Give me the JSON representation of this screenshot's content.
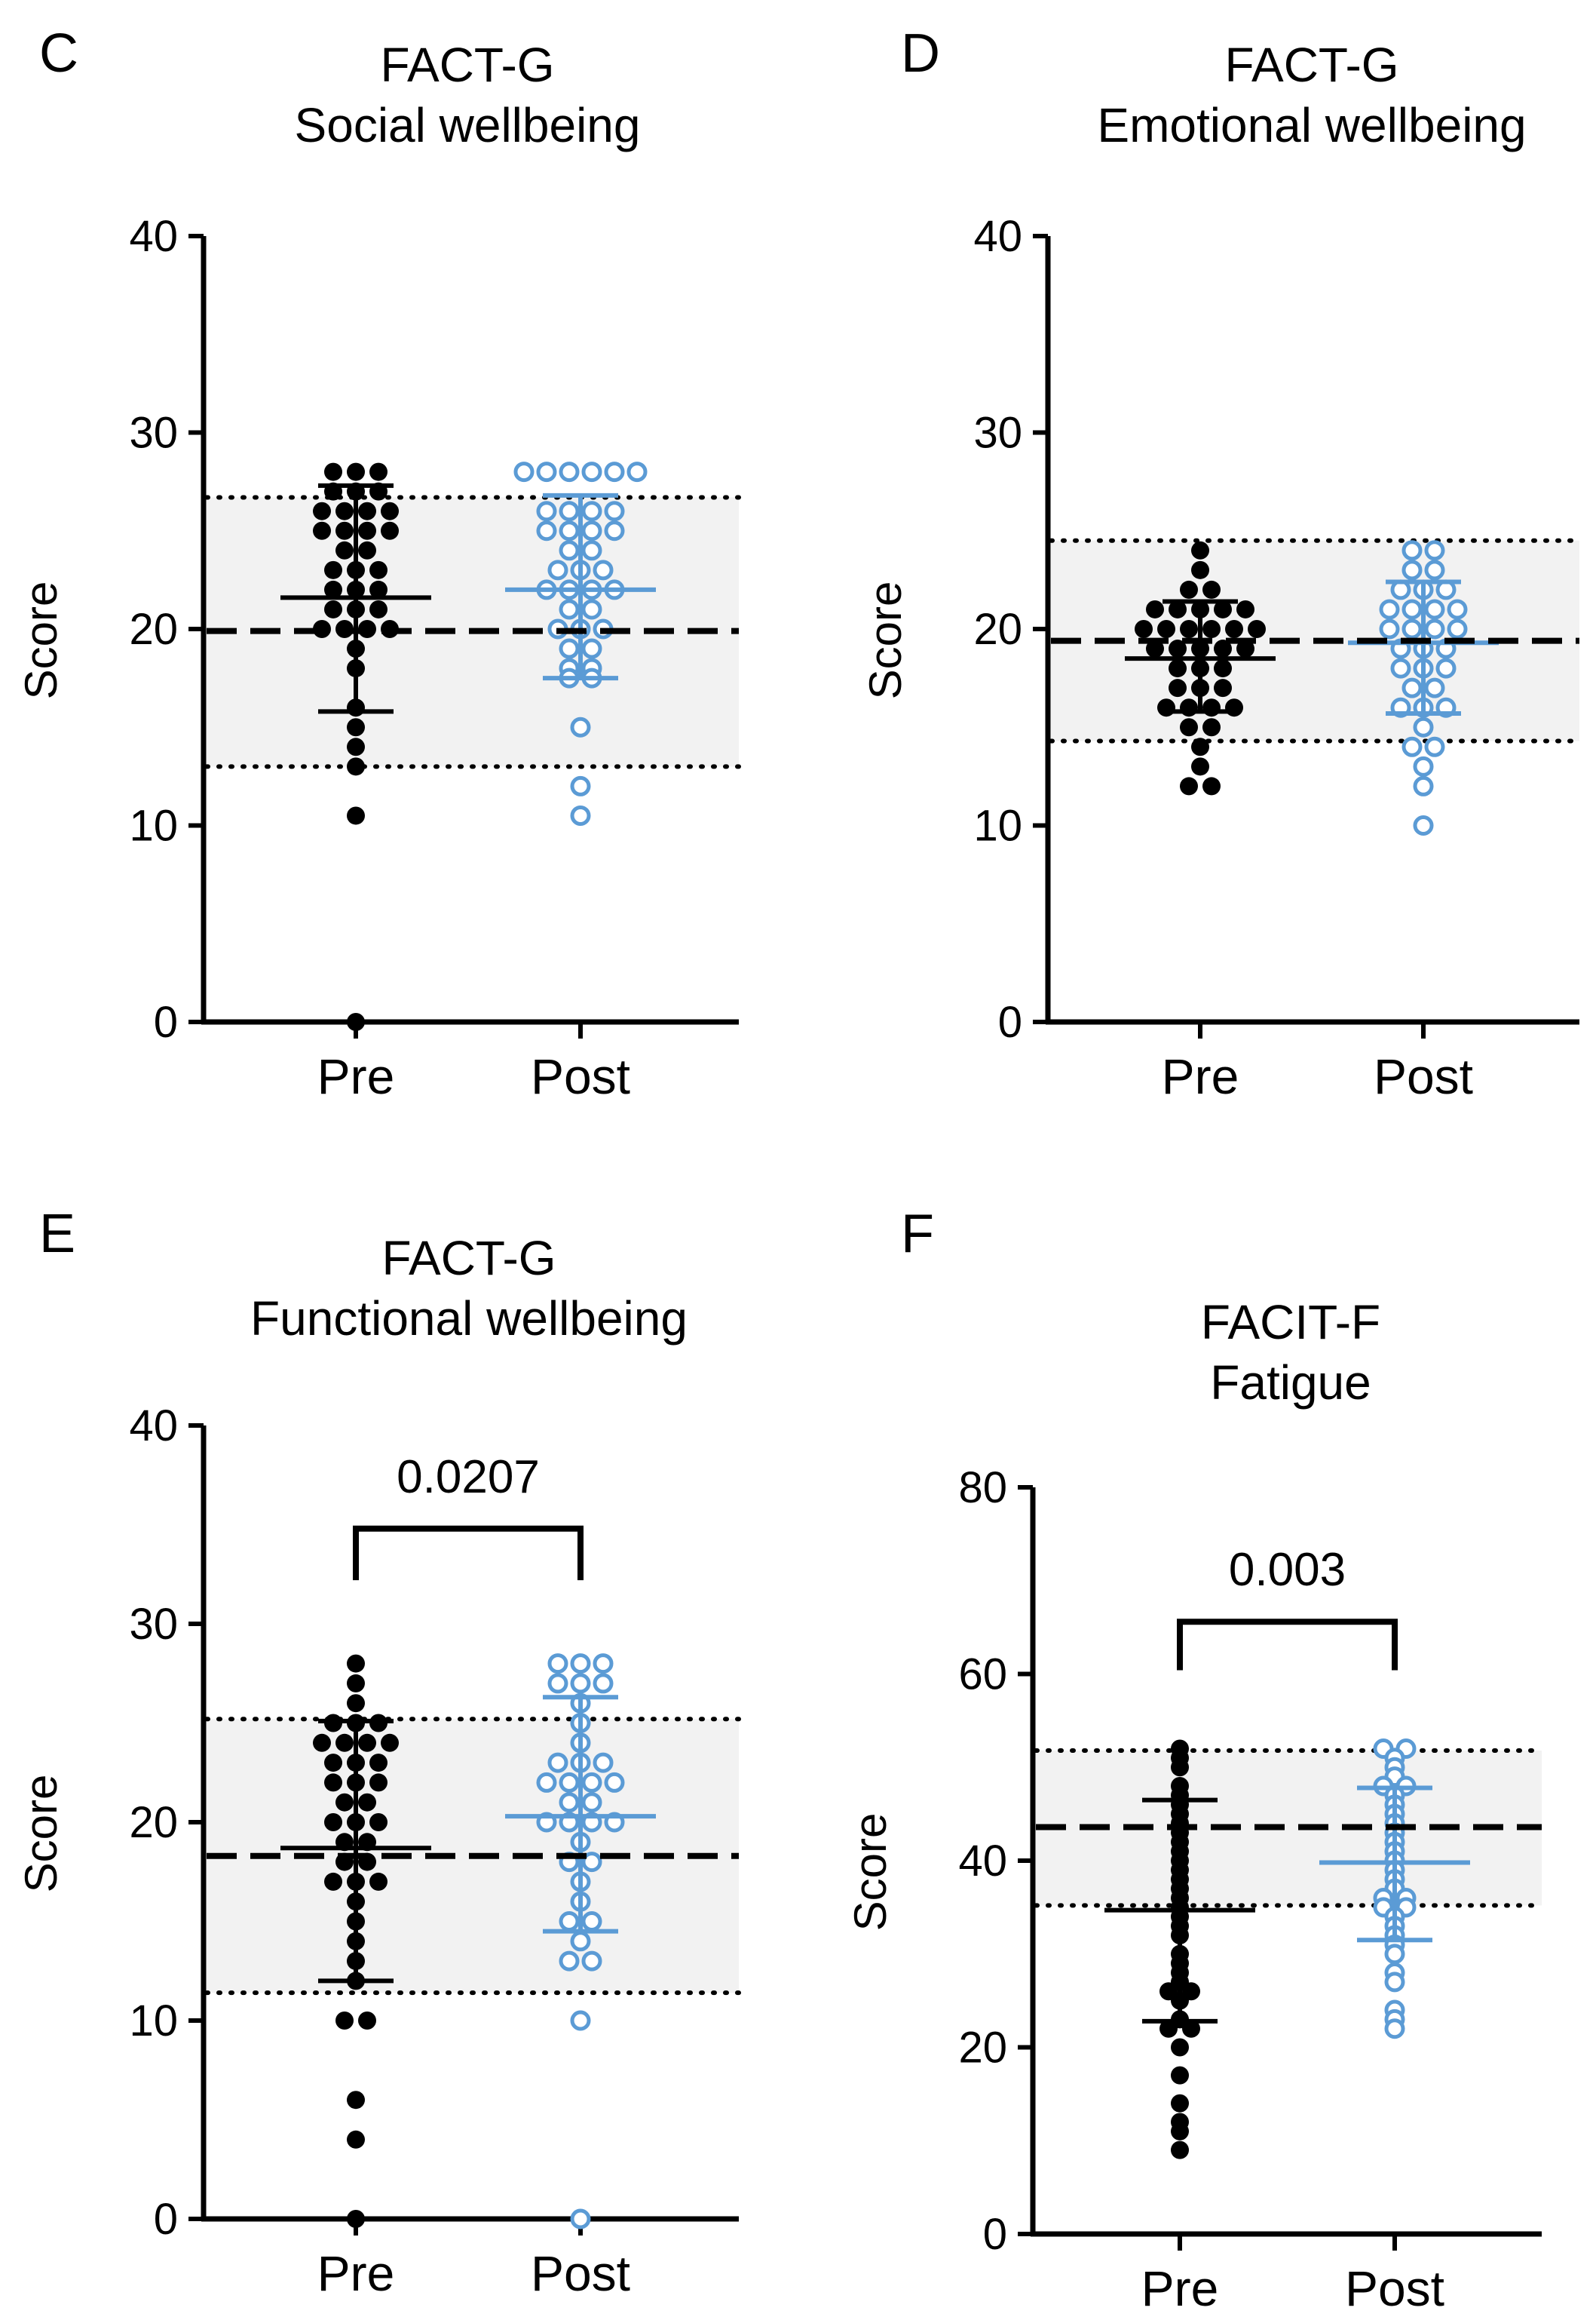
{
  "chart_data": [
    {
      "panel": "C",
      "type": "scatter",
      "title": [
        "FACT-G",
        "Social wellbeing"
      ],
      "ylabel": "Score",
      "ylim": [
        0,
        40
      ],
      "yticks": [
        0,
        10,
        20,
        30,
        40
      ],
      "categories": [
        "Pre",
        "Post"
      ],
      "reference": {
        "mean": 19.9,
        "lower": 13.0,
        "upper": 26.7
      },
      "pvalue": null,
      "series": [
        {
          "name": "Pre",
          "mean": 21.6,
          "sd_low": 15.8,
          "sd_high": 27.3,
          "values": [
            28,
            28,
            28,
            27,
            27,
            27,
            26,
            26,
            26,
            26,
            25,
            25,
            25,
            25,
            24,
            24,
            23,
            23,
            23,
            22,
            22,
            22,
            21,
            21,
            21,
            20,
            20,
            20,
            20,
            19,
            18,
            16,
            15,
            14,
            13,
            10.5,
            0
          ]
        },
        {
          "name": "Post",
          "mean": 22.0,
          "sd_low": 17.5,
          "sd_high": 26.8,
          "values": [
            28,
            28,
            28,
            28,
            28,
            28,
            26,
            26,
            26,
            26,
            25,
            25,
            25,
            25,
            24,
            24,
            23,
            23,
            23,
            22,
            22,
            22,
            22,
            21,
            21,
            20,
            20,
            20,
            19,
            19,
            18,
            18,
            17.5,
            17.5,
            15,
            12,
            10.5
          ]
        }
      ]
    },
    {
      "panel": "D",
      "type": "scatter",
      "title": [
        "FACT-G",
        "Emotional wellbeing"
      ],
      "ylabel": "Score",
      "ylim": [
        0,
        40
      ],
      "yticks": [
        0,
        10,
        20,
        30,
        40
      ],
      "categories": [
        "Pre",
        "Post"
      ],
      "reference": {
        "mean": 19.4,
        "lower": 14.3,
        "upper": 24.5
      },
      "pvalue": null,
      "series": [
        {
          "name": "Pre",
          "mean": 18.5,
          "sd_low": 15.8,
          "sd_high": 21.4,
          "values": [
            24,
            23,
            22,
            22,
            21,
            21,
            21,
            21,
            21,
            20,
            20,
            20,
            20,
            20,
            20,
            19,
            19,
            19,
            19,
            19,
            18,
            18,
            18,
            17,
            17,
            17,
            16,
            16,
            16,
            16,
            15,
            15,
            14,
            13,
            12,
            12
          ]
        },
        {
          "name": "Post",
          "mean": 19.3,
          "sd_low": 15.7,
          "sd_high": 22.4,
          "values": [
            24,
            24,
            23,
            23,
            22,
            22,
            22,
            21,
            21,
            21,
            21,
            20,
            20,
            20,
            20,
            19,
            19,
            19,
            18,
            18,
            18,
            17,
            17,
            16,
            16,
            16,
            15,
            14,
            14,
            13,
            12,
            10
          ]
        }
      ]
    },
    {
      "panel": "E",
      "type": "scatter",
      "title": [
        "FACT-G",
        "Functional wellbeing"
      ],
      "ylabel": "Score",
      "ylim": [
        0,
        40
      ],
      "yticks": [
        0,
        10,
        20,
        30,
        40
      ],
      "categories": [
        "Pre",
        "Post"
      ],
      "reference": {
        "mean": 18.3,
        "lower": 11.4,
        "upper": 25.2
      },
      "pvalue": "0.0207",
      "series": [
        {
          "name": "Pre",
          "mean": 18.7,
          "sd_low": 12.0,
          "sd_high": 25.1,
          "values": [
            28,
            27,
            26,
            25,
            25,
            25,
            24,
            24,
            24,
            24,
            23,
            23,
            23,
            22,
            22,
            22,
            21,
            21,
            20,
            20,
            20,
            19,
            19,
            18,
            18,
            17,
            17,
            17,
            16,
            15,
            14,
            13,
            12,
            10,
            10,
            6,
            4,
            0
          ]
        },
        {
          "name": "Post",
          "mean": 20.3,
          "sd_low": 14.5,
          "sd_high": 26.3,
          "values": [
            28,
            28,
            28,
            27,
            27,
            27,
            26,
            25,
            24,
            23,
            23,
            23,
            22,
            22,
            22,
            22,
            21,
            21,
            20,
            20,
            20,
            20,
            19,
            18,
            18,
            17,
            16,
            15,
            15,
            14,
            13,
            13,
            10,
            0
          ]
        }
      ]
    },
    {
      "panel": "F",
      "type": "scatter",
      "title": [
        "FACIT-F",
        "Fatigue"
      ],
      "ylabel": "Score",
      "ylim": [
        0,
        80
      ],
      "yticks": [
        0,
        20,
        40,
        60,
        80
      ],
      "categories": [
        "Pre",
        "Post"
      ],
      "reference": {
        "mean": 43.6,
        "lower": 35.2,
        "upper": 51.8
      },
      "pvalue": "0.003",
      "series": [
        {
          "name": "Pre",
          "mean": 34.7,
          "sd_low": 22.8,
          "sd_high": 46.5,
          "values": [
            52,
            51,
            50,
            48,
            47,
            46,
            45,
            44,
            43,
            42,
            41,
            40,
            39,
            38,
            37,
            36,
            35,
            34,
            33,
            32,
            30,
            29,
            28,
            27,
            26,
            26,
            25,
            23,
            22,
            22,
            20,
            17,
            14,
            12,
            11,
            9
          ]
        },
        {
          "name": "Post",
          "mean": 39.8,
          "sd_low": 31.5,
          "sd_high": 47.8,
          "values": [
            52,
            52,
            51,
            50,
            49,
            48,
            48,
            47,
            46,
            45,
            44,
            43,
            42,
            41,
            40,
            39,
            38,
            37,
            36,
            36,
            35,
            35,
            34,
            33,
            32,
            31,
            30,
            28,
            27,
            24,
            23,
            22
          ]
        }
      ]
    }
  ],
  "style": {
    "pre_color": "#000000",
    "post_color": "#5b9bd5",
    "band_color": "#f2f2f2"
  }
}
